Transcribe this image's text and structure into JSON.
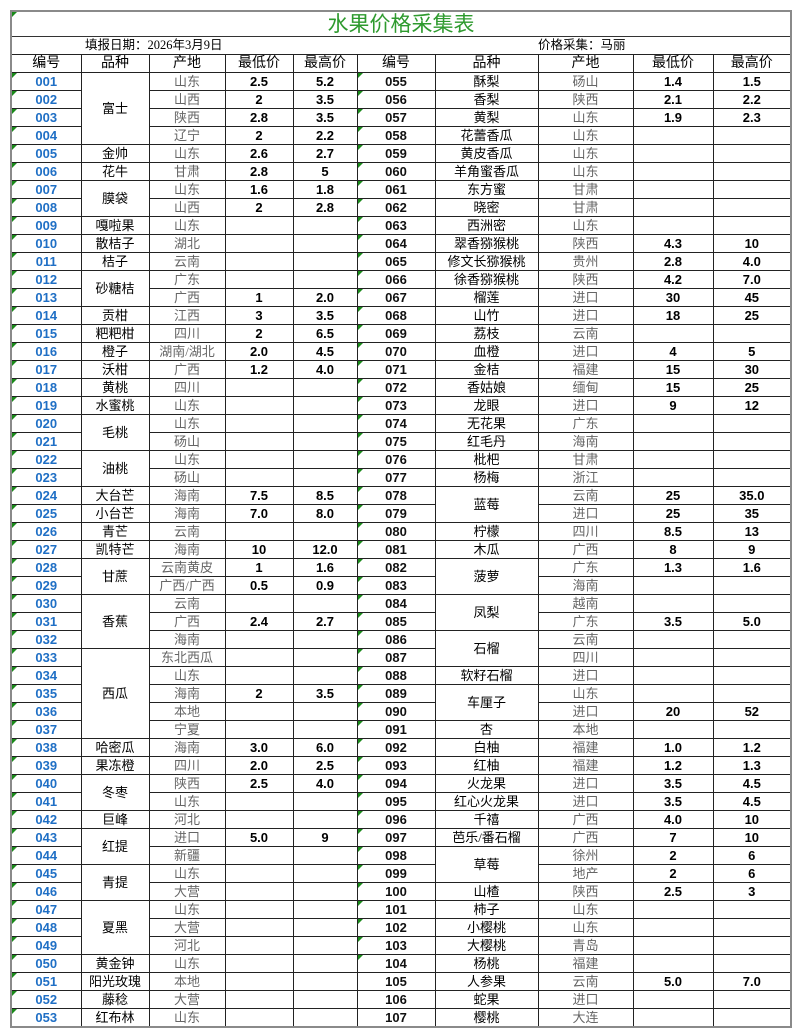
{
  "title": "水果价格采集表",
  "fill_date": "填报日期：2026年3月9日",
  "collector": "价格采集：马丽",
  "colors": {
    "title": "#2e9a2e",
    "id_blue": "#1f6fc5",
    "origin_gray": "#666666",
    "cell_marker": "#1a8a1a"
  },
  "headers": [
    "编号",
    "品种",
    "产地",
    "最低价",
    "最高价",
    "编号",
    "品种",
    "产地",
    "最低价",
    "最高价"
  ],
  "left": [
    {
      "id": "001",
      "name": "富士",
      "span": 4,
      "origin": "山东",
      "low": "2.5",
      "high": "5.2"
    },
    {
      "id": "002",
      "origin": "山西",
      "low": "2",
      "high": "3.5"
    },
    {
      "id": "003",
      "origin": "陕西",
      "low": "2.8",
      "high": "3.5"
    },
    {
      "id": "004",
      "origin": "辽宁",
      "low": "2",
      "high": "2.2"
    },
    {
      "id": "005",
      "name": "金帅",
      "origin": "山东",
      "low": "2.6",
      "high": "2.7"
    },
    {
      "id": "006",
      "name": "花牛",
      "origin": "甘肃",
      "low": "2.8",
      "high": "5"
    },
    {
      "id": "007",
      "name": "膜袋",
      "span": 2,
      "origin": "山东",
      "low": "1.6",
      "high": "1.8"
    },
    {
      "id": "008",
      "origin": "山西",
      "low": "2",
      "high": "2.8"
    },
    {
      "id": "009",
      "name": "嘎啦果",
      "origin": "山东"
    },
    {
      "id": "010",
      "name": "散桔子",
      "origin": "湖北"
    },
    {
      "id": "011",
      "name": "桔子",
      "origin": "云南"
    },
    {
      "id": "012",
      "name": "砂糖桔",
      "span": 2,
      "origin": "广东"
    },
    {
      "id": "013",
      "origin": "广西",
      "low": "1",
      "high": "2.0"
    },
    {
      "id": "014",
      "name": "贡柑",
      "origin": "江西",
      "low": "3",
      "high": "3.5"
    },
    {
      "id": "015",
      "name": "粑粑柑",
      "origin": "四川",
      "low": "2",
      "high": "6.5"
    },
    {
      "id": "016",
      "name": "橙子",
      "origin": "湖南/湖北",
      "low": "2.0",
      "high": "4.5"
    },
    {
      "id": "017",
      "name": "沃柑",
      "origin": "广西",
      "low": "1.2",
      "high": "4.0"
    },
    {
      "id": "018",
      "name": "黄桃",
      "origin": "四川"
    },
    {
      "id": "019",
      "name": "水蜜桃",
      "origin": "山东"
    },
    {
      "id": "020",
      "name": "毛桃",
      "span": 2,
      "origin": "山东"
    },
    {
      "id": "021",
      "origin": "砀山"
    },
    {
      "id": "022",
      "name": "油桃",
      "span": 2,
      "origin": "山东"
    },
    {
      "id": "023",
      "origin": "砀山"
    },
    {
      "id": "024",
      "name": "大台芒",
      "origin": "海南",
      "low": "7.5",
      "high": "8.5"
    },
    {
      "id": "025",
      "name": "小台芒",
      "origin": "海南",
      "low": "7.0",
      "high": "8.0"
    },
    {
      "id": "026",
      "name": "青芒",
      "origin": "云南"
    },
    {
      "id": "027",
      "name": "凯特芒",
      "origin": "海南",
      "low": "10",
      "high": "12.0"
    },
    {
      "id": "028",
      "name": "甘蔗",
      "span": 2,
      "origin": "云南黄皮",
      "low": "1",
      "high": "1.6"
    },
    {
      "id": "029",
      "origin": "广西/广西",
      "low": "0.5",
      "high": "0.9"
    },
    {
      "id": "030",
      "name": "香蕉",
      "span": 3,
      "origin": "云南"
    },
    {
      "id": "031",
      "origin": "广西",
      "low": "2.4",
      "high": "2.7"
    },
    {
      "id": "032",
      "origin": "海南"
    },
    {
      "id": "033",
      "name": "西瓜",
      "span": 5,
      "origin": "东北西瓜"
    },
    {
      "id": "034",
      "origin": "山东"
    },
    {
      "id": "035",
      "origin": "海南",
      "low": "2",
      "high": "3.5"
    },
    {
      "id": "036",
      "origin": "本地"
    },
    {
      "id": "037",
      "origin": "宁夏"
    },
    {
      "id": "038",
      "name": "哈密瓜",
      "origin": "海南",
      "low": "3.0",
      "high": "6.0"
    },
    {
      "id": "039",
      "name": "果冻橙",
      "origin": "四川",
      "low": "2.0",
      "high": "2.5"
    },
    {
      "id": "040",
      "name": "冬枣",
      "span": 2,
      "origin": "陕西",
      "low": "2.5",
      "high": "4.0"
    },
    {
      "id": "041",
      "origin": "山东"
    },
    {
      "id": "042",
      "name": "巨峰",
      "origin": "河北"
    },
    {
      "id": "043",
      "name": "红提",
      "span": 2,
      "origin": "进口",
      "low": "5.0",
      "high": "9"
    },
    {
      "id": "044",
      "origin": "新疆"
    },
    {
      "id": "045",
      "name": "青提",
      "span": 2,
      "origin": "山东"
    },
    {
      "id": "046",
      "origin": "大营"
    },
    {
      "id": "047",
      "name": "夏黑",
      "span": 3,
      "origin": "山东"
    },
    {
      "id": "048",
      "origin": "大营"
    },
    {
      "id": "049",
      "origin": "河北"
    },
    {
      "id": "050",
      "name": "黄金钟",
      "origin": "山东"
    },
    {
      "id": "051",
      "name": "阳光玫瑰",
      "origin": "本地"
    },
    {
      "id": "052",
      "name": "藤稔",
      "origin": "大营"
    },
    {
      "id": "053",
      "name": "红布林",
      "origin": "山东"
    }
  ],
  "right": [
    {
      "id": "055",
      "name": "酥梨",
      "origin": "砀山",
      "low": "1.4",
      "high": "1.5"
    },
    {
      "id": "056",
      "name": "香梨",
      "origin": "陕西",
      "low": "2.1",
      "high": "2.2"
    },
    {
      "id": "057",
      "name": "黄梨",
      "origin": "山东",
      "low": "1.9",
      "high": "2.3"
    },
    {
      "id": "058",
      "name": "花蕾香瓜",
      "origin": "山东"
    },
    {
      "id": "059",
      "name": "黄皮香瓜",
      "origin": "山东"
    },
    {
      "id": "060",
      "name": "羊角蜜香瓜",
      "origin": "山东"
    },
    {
      "id": "061",
      "name": "东方蜜",
      "origin": "甘肃"
    },
    {
      "id": "062",
      "name": "晓密",
      "origin": "甘肃"
    },
    {
      "id": "063",
      "name": "西洲密",
      "origin": "山东"
    },
    {
      "id": "064",
      "name": "翠香猕猴桃",
      "origin": "陕西",
      "low": "4.3",
      "high": "10"
    },
    {
      "id": "065",
      "name": "修文长猕猴桃",
      "origin": "贵州",
      "low": "2.8",
      "high": "4.0"
    },
    {
      "id": "066",
      "name": "徐香猕猴桃",
      "origin": "陕西",
      "low": "4.2",
      "high": "7.0"
    },
    {
      "id": "067",
      "name": "榴莲",
      "origin": "进口",
      "low": "30",
      "high": "45"
    },
    {
      "id": "068",
      "name": "山竹",
      "origin": "进口",
      "low": "18",
      "high": "25"
    },
    {
      "id": "069",
      "name": "荔枝",
      "origin": "云南"
    },
    {
      "id": "070",
      "name": "血橙",
      "origin": "进口",
      "low": "4",
      "high": "5"
    },
    {
      "id": "071",
      "name": "金桔",
      "origin": "福建",
      "low": "15",
      "high": "30"
    },
    {
      "id": "072",
      "name": "香姑娘",
      "origin": "缅甸",
      "low": "15",
      "high": "25"
    },
    {
      "id": "073",
      "name": "龙眼",
      "origin": "进口",
      "low": "9",
      "high": "12"
    },
    {
      "id": "074",
      "name": "无花果",
      "origin": "广东"
    },
    {
      "id": "075",
      "name": "红毛丹",
      "origin": "海南"
    },
    {
      "id": "076",
      "name": "枇杷",
      "origin": "甘肃"
    },
    {
      "id": "077",
      "name": "杨梅",
      "origin": "浙江"
    },
    {
      "id": "078",
      "name": "蓝莓",
      "span": 2,
      "origin": "云南",
      "low": "25",
      "high": "35.0"
    },
    {
      "id": "079",
      "origin": "进口",
      "low": "25",
      "high": "35"
    },
    {
      "id": "080",
      "name": "柠檬",
      "origin": "四川",
      "low": "8.5",
      "high": "13"
    },
    {
      "id": "081",
      "name": "木瓜",
      "origin": "广西",
      "low": "8",
      "high": "9"
    },
    {
      "id": "082",
      "name": "菠萝",
      "span": 2,
      "origin": "广东",
      "low": "1.3",
      "high": "1.6"
    },
    {
      "id": "083",
      "origin": "海南"
    },
    {
      "id": "084",
      "name": "凤梨",
      "span": 2,
      "origin": "越南"
    },
    {
      "id": "085",
      "origin": "广东",
      "low": "3.5",
      "high": "5.0"
    },
    {
      "id": "086",
      "name": "石榴",
      "span": 2,
      "origin": "云南"
    },
    {
      "id": "087",
      "origin": "四川"
    },
    {
      "id": "088",
      "name": "软籽石榴",
      "origin": "进口"
    },
    {
      "id": "089",
      "name": "车厘子",
      "span": 2,
      "origin": "山东"
    },
    {
      "id": "090",
      "origin": "进口",
      "low": "20",
      "high": "52"
    },
    {
      "id": "091",
      "name": "杏",
      "origin": "本地"
    },
    {
      "id": "092",
      "name": "白柚",
      "origin": "福建",
      "low": "1.0",
      "high": "1.2"
    },
    {
      "id": "093",
      "name": "红柚",
      "origin": "福建",
      "low": "1.2",
      "high": "1.3"
    },
    {
      "id": "094",
      "name": "火龙果",
      "origin": "进口",
      "low": "3.5",
      "high": "4.5"
    },
    {
      "id": "095",
      "name": "红心火龙果",
      "origin": "进口",
      "low": "3.5",
      "high": "4.5"
    },
    {
      "id": "096",
      "name": "千禧",
      "origin": "广西",
      "low": "4.0",
      "high": "10"
    },
    {
      "id": "097",
      "name": "芭乐/番石榴",
      "origin": "广西",
      "low": "7",
      "high": "10"
    },
    {
      "id": "098",
      "name": "草莓",
      "span": 2,
      "origin": "徐州",
      "low": "2",
      "high": "6"
    },
    {
      "id": "099",
      "origin": "地产",
      "low": "2",
      "high": "6"
    },
    {
      "id": "100",
      "name": "山楂",
      "origin": "陕西",
      "low": "2.5",
      "high": "3"
    },
    {
      "id": "101",
      "name": "柿子",
      "origin": "山东"
    },
    {
      "id": "102",
      "name": "小樱桃",
      "origin": "山东"
    },
    {
      "id": "103",
      "name": "大樱桃",
      "origin": "青岛"
    },
    {
      "id": "104",
      "name": "杨桃",
      "origin": "福建"
    },
    {
      "id": "105",
      "name": "人参果",
      "origin": "云南",
      "low": "5.0",
      "high": "7.0"
    },
    {
      "id": "106",
      "name": "蛇果",
      "origin": "进口"
    },
    {
      "id": "107",
      "name": "樱桃",
      "origin": "大连"
    }
  ]
}
